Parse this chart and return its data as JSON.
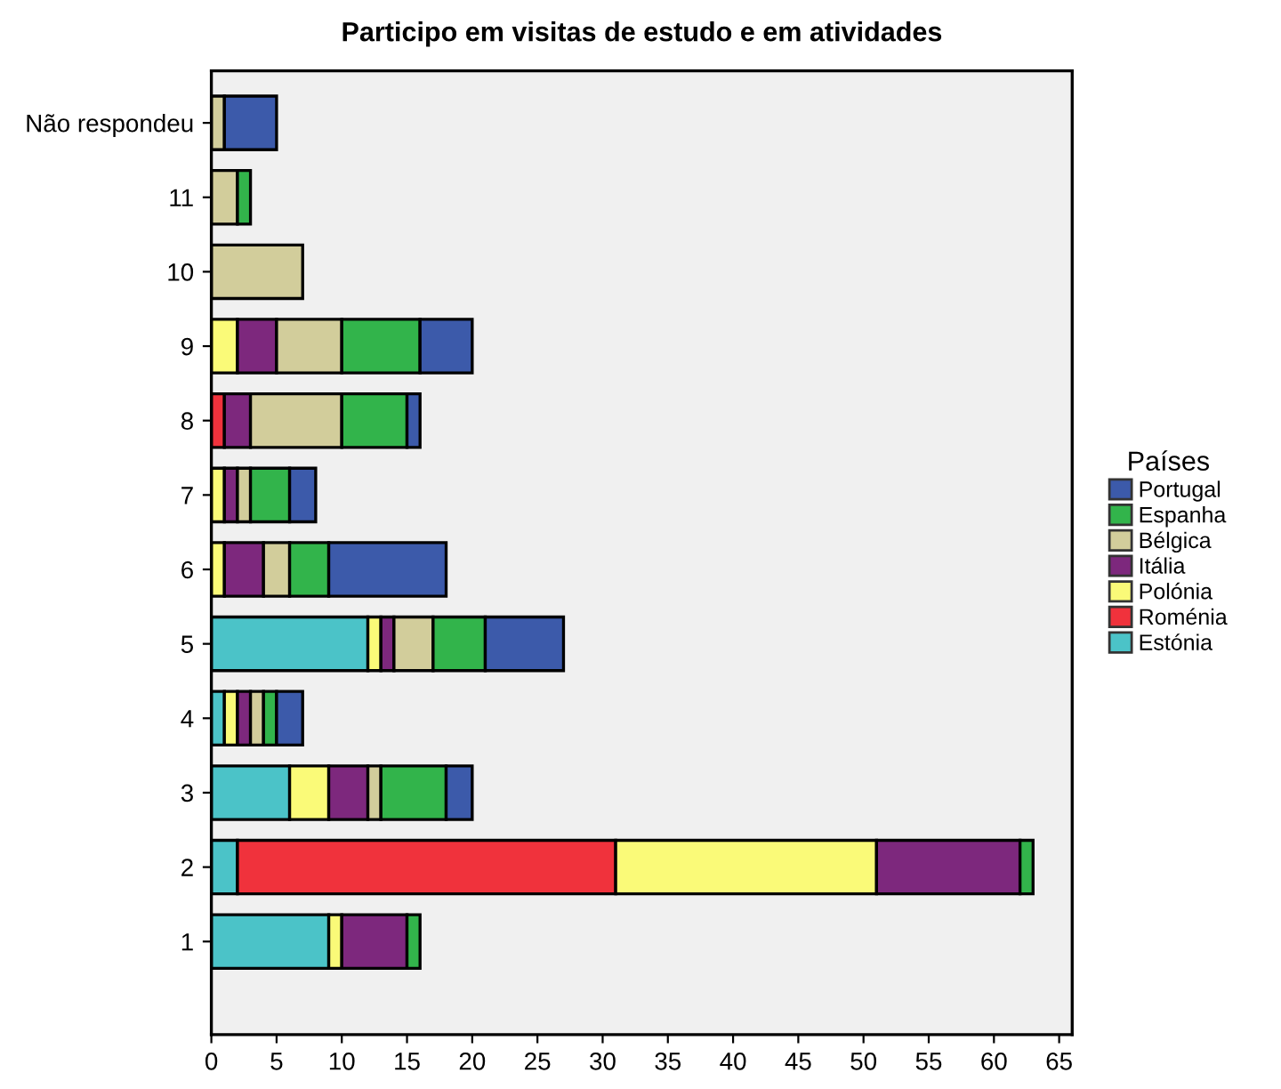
{
  "chart_data": {
    "type": "bar",
    "orientation": "horizontal",
    "stacked": true,
    "title": "Participo em visitas de estudo e em atividades",
    "legend_title": "Países",
    "legend": "right",
    "categories": [
      "Não respondeu",
      "11",
      "10",
      "9",
      "8",
      "7",
      "6",
      "5",
      "4",
      "3",
      "2",
      "1"
    ],
    "series": [
      {
        "name": "Estónia",
        "color": "#4bc3c8",
        "values": [
          null,
          null,
          null,
          null,
          null,
          null,
          null,
          12,
          1,
          6,
          2,
          9
        ]
      },
      {
        "name": "Roménia",
        "color": "#f0323c",
        "values": [
          null,
          null,
          null,
          null,
          1,
          null,
          null,
          null,
          null,
          null,
          29,
          null
        ]
      },
      {
        "name": "Polónia",
        "color": "#fafa78",
        "values": [
          null,
          null,
          null,
          2,
          null,
          1,
          1,
          1,
          1,
          3,
          20,
          1
        ]
      },
      {
        "name": "Itália",
        "color": "#7d287d",
        "values": [
          null,
          null,
          null,
          3,
          2,
          1,
          3,
          1,
          1,
          3,
          11,
          5
        ]
      },
      {
        "name": "Bélgica",
        "color": "#d2cd9b",
        "values": [
          1,
          2,
          7,
          5,
          7,
          1,
          2,
          3,
          1,
          1,
          null,
          null
        ]
      },
      {
        "name": "Espanha",
        "color": "#32b44b",
        "values": [
          null,
          1,
          null,
          6,
          5,
          3,
          3,
          4,
          1,
          5,
          1,
          1
        ]
      },
      {
        "name": "Portugal",
        "color": "#3c5aaa",
        "values": [
          4,
          null,
          null,
          4,
          1,
          2,
          9,
          6,
          2,
          2,
          null,
          null
        ]
      }
    ],
    "xlim": [
      0,
      66
    ],
    "xticks": [
      0,
      5,
      10,
      15,
      20,
      25,
      30,
      35,
      40,
      45,
      50,
      55,
      60,
      65
    ],
    "grid": false
  }
}
